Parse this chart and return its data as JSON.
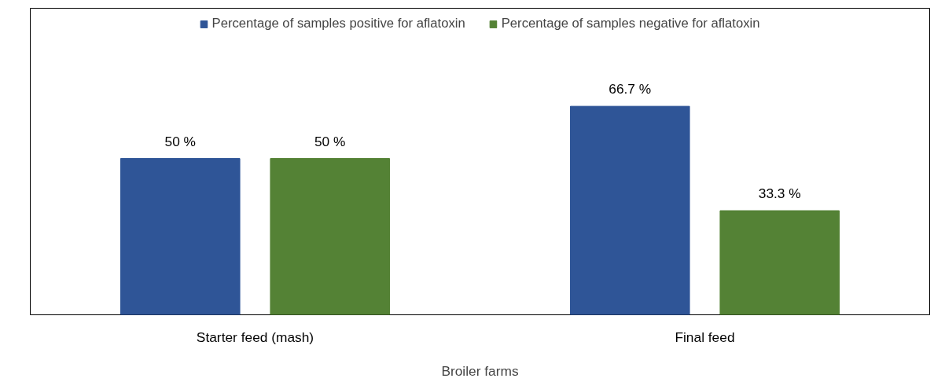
{
  "chart_data": {
    "type": "bar",
    "xlabel": "Broiler farms",
    "categories": [
      "Starter feed (mash)",
      "Final feed"
    ],
    "series": [
      {
        "name": "Percentage of samples positive for aflatoxin",
        "color": "#2f5597",
        "values": [
          50,
          66.7
        ],
        "value_labels": [
          "50 %",
          "66.7 %"
        ]
      },
      {
        "name": "Percentage of samples negative for aflatoxin",
        "color": "#548235",
        "values": [
          50,
          33.3
        ],
        "value_labels": [
          "50 %",
          "33.3 %"
        ]
      }
    ],
    "legend": "top"
  }
}
